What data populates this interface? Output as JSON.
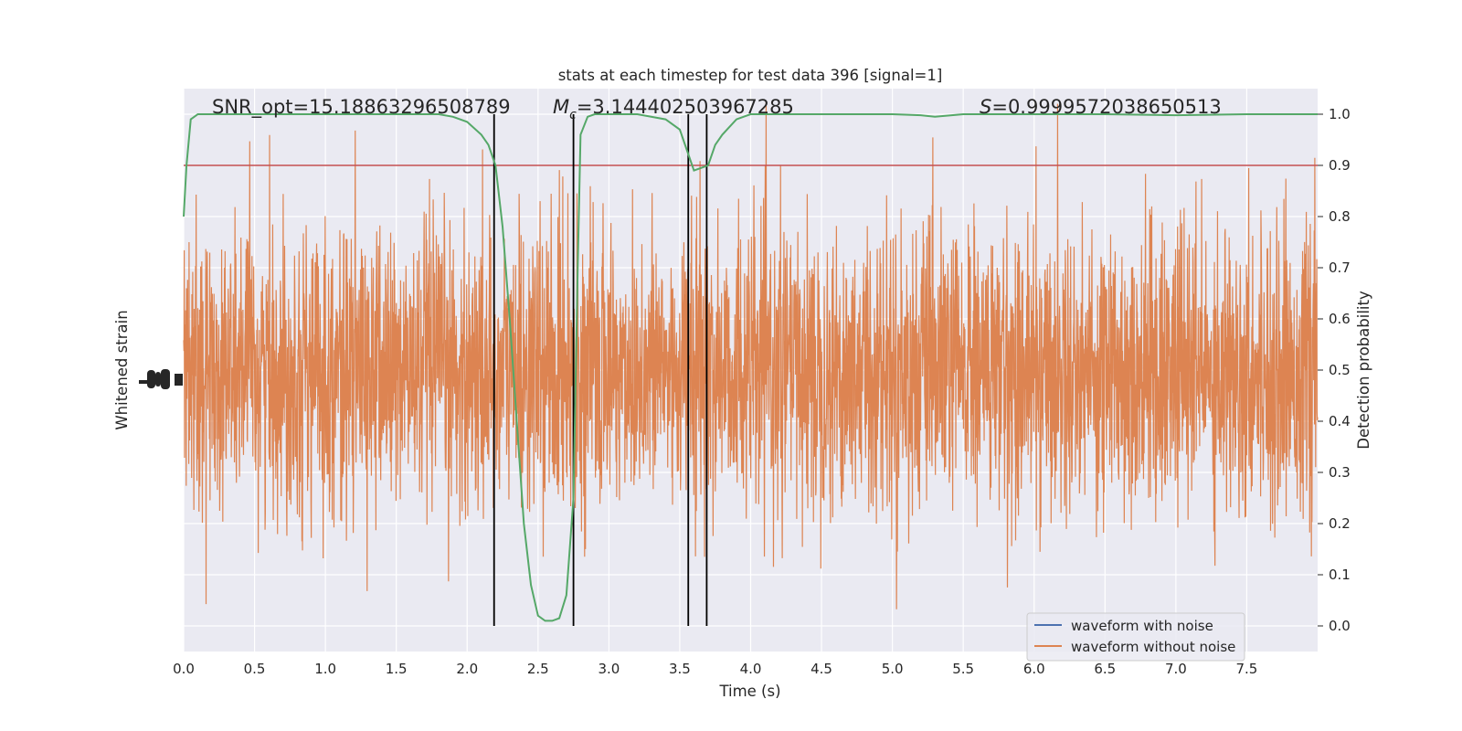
{
  "chart_data": {
    "type": "line",
    "title": "stats at each timestep for test data 396 [signal=1]",
    "xlabel": "Time (s)",
    "ylabel_left": "Whitened strain",
    "ylabel_right": "Detection probability",
    "xlim": [
      0,
      8.0
    ],
    "ylim_right": [
      -0.05,
      1.05
    ],
    "ylim_left": [
      -1.0,
      1.0
    ],
    "x_ticks": [
      "0.0",
      "0.5",
      "1.0",
      "1.5",
      "2.0",
      "2.5",
      "3.0",
      "3.5",
      "4.0",
      "4.5",
      "5.0",
      "5.5",
      "6.0",
      "6.5",
      "7.0",
      "7.5"
    ],
    "right_ticks": [
      "0.0",
      "0.1",
      "0.2",
      "0.3",
      "0.4",
      "0.5",
      "0.6",
      "0.7",
      "0.8",
      "0.9",
      "1.0"
    ],
    "grid": true,
    "annotations": {
      "snr": "SNR_opt=15.18863296508789",
      "mc_symbol": "M",
      "mc_sub": "c",
      "mc_value": "=3.144402503967285",
      "s_symbol": "S",
      "s_value": "=0.9999572038650513"
    },
    "threshold": {
      "value": 0.9,
      "color": "#c44e52"
    },
    "vertical_lines": [
      2.19,
      2.75,
      3.56,
      3.69
    ],
    "series": [
      {
        "name": "waveform with noise",
        "color": "#4c72b0",
        "axis": "left",
        "values": []
      },
      {
        "name": "waveform without noise",
        "color": "#dd8452",
        "axis": "left",
        "noise_sigma": 0.25
      },
      {
        "name": "",
        "color": "#55a868",
        "axis": "right",
        "x": [
          0.0,
          0.02,
          0.05,
          0.1,
          0.2,
          0.5,
          1.0,
          1.5,
          1.8,
          1.9,
          2.0,
          2.1,
          2.15,
          2.2,
          2.25,
          2.3,
          2.35,
          2.4,
          2.45,
          2.5,
          2.55,
          2.6,
          2.65,
          2.7,
          2.75,
          2.78,
          2.8,
          2.85,
          2.9,
          3.0,
          3.2,
          3.4,
          3.5,
          3.55,
          3.6,
          3.65,
          3.7,
          3.75,
          3.8,
          3.9,
          4.0,
          4.5,
          5.0,
          5.2,
          5.3,
          5.5,
          6.0,
          6.5,
          7.0,
          7.5,
          8.0
        ],
        "values": [
          0.8,
          0.9,
          0.99,
          1.0,
          1.0,
          1.0,
          1.0,
          1.0,
          1.0,
          0.995,
          0.985,
          0.96,
          0.94,
          0.9,
          0.78,
          0.6,
          0.4,
          0.2,
          0.08,
          0.02,
          0.01,
          0.01,
          0.015,
          0.06,
          0.25,
          0.7,
          0.96,
          0.995,
          1.0,
          1.0,
          1.0,
          0.99,
          0.97,
          0.93,
          0.89,
          0.895,
          0.9,
          0.94,
          0.96,
          0.99,
          1.0,
          1.0,
          1.0,
          0.998,
          0.995,
          1.0,
          1.0,
          1.0,
          0.998,
          1.0,
          1.0
        ]
      }
    ],
    "legend_placement": "lower-right"
  }
}
